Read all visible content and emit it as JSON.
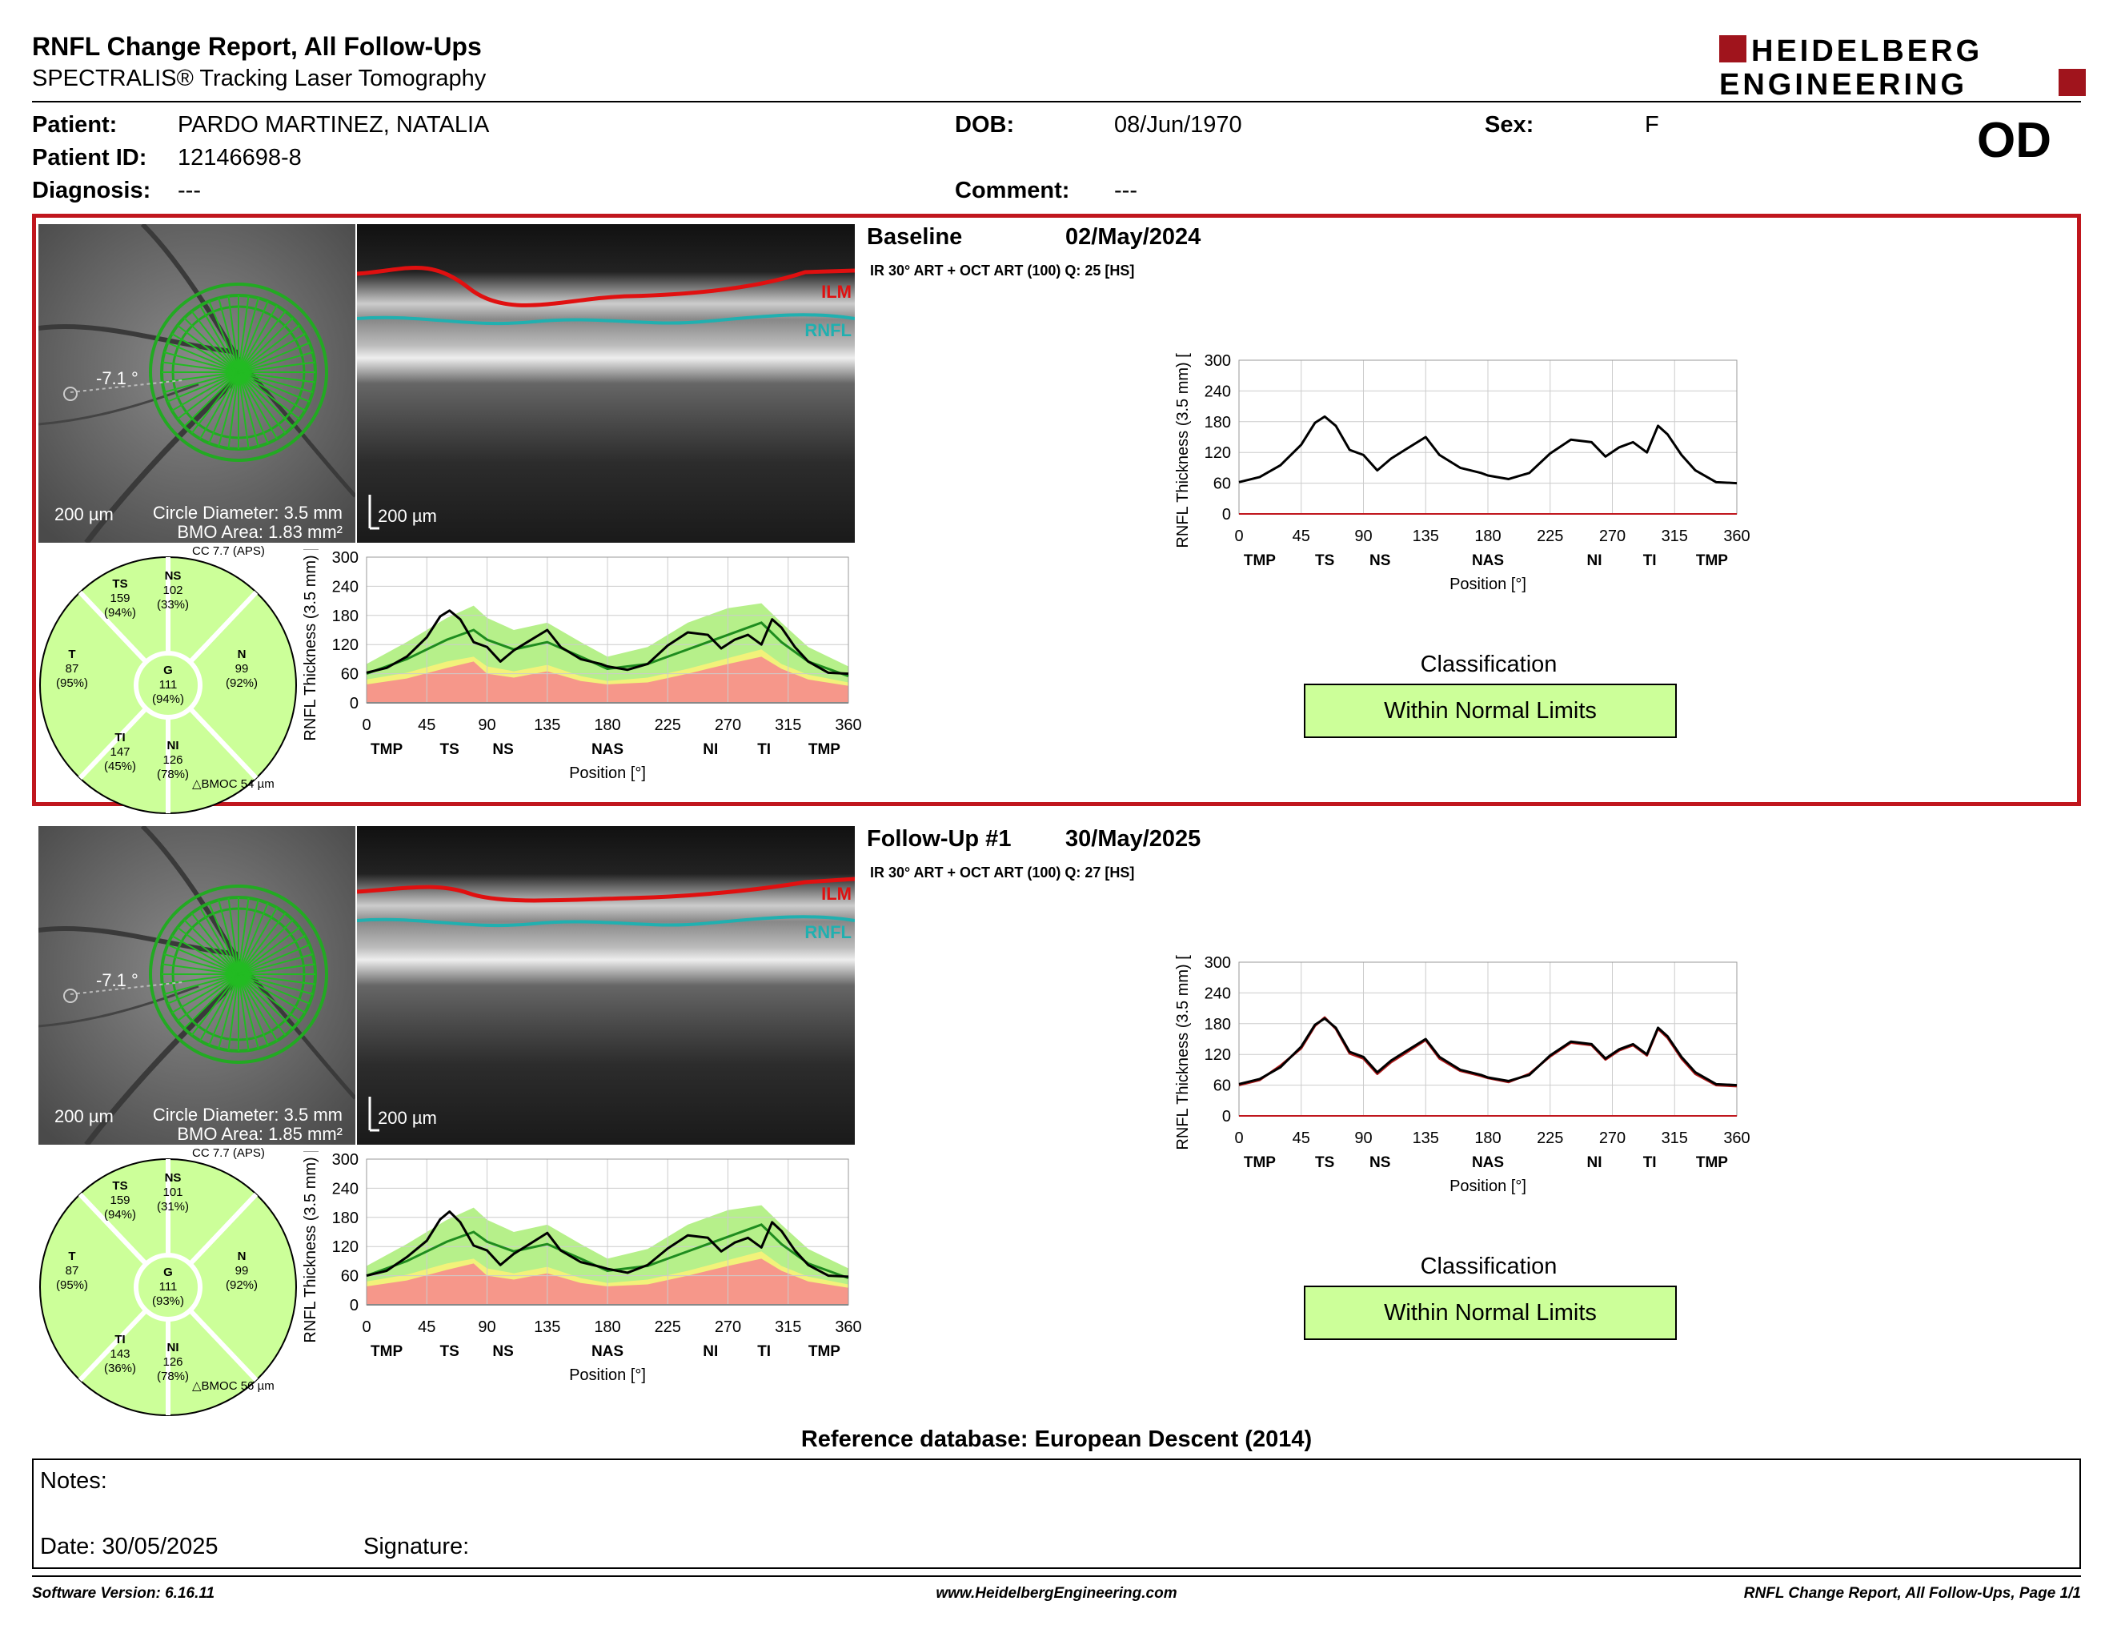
{
  "report": {
    "title": "RNFL Change Report, All Follow-Ups",
    "subtitle": "SPECTRALIS® Tracking Laser Tomography",
    "logo_line1": "HEIDELBERG",
    "logo_line2": "ENGINEERING",
    "eye": "OD"
  },
  "patient": {
    "patient_label": "Patient:",
    "patient_value": "PARDO MARTINEZ, NATALIA",
    "id_label": "Patient ID:",
    "id_value": "12146698-8",
    "diagnosis_label": "Diagnosis:",
    "diagnosis_value": "---",
    "dob_label": "DOB:",
    "dob_value": "08/Jun/1970",
    "comment_label": "Comment:",
    "comment_value": "---",
    "sex_label": "Sex:",
    "sex_value": "F"
  },
  "colors": {
    "accent_red": "#c0161d",
    "within_normal": "#ccff99",
    "band_green": "#b6f08a",
    "band_yellow": "#f2f27a",
    "band_red": "#f6978a",
    "curve_green": "#1e8c1e",
    "ilm_red": "#e01010",
    "rnfl_cyan": "#20b0b0"
  },
  "exams": [
    {
      "label": "Baseline",
      "date": "02/May/2024",
      "acquisition": "IR 30° ART + OCT ART (100) Q: 25 [HS]",
      "scale_fundus": "200 µm",
      "scale_oct": "200 µm",
      "circle_diameter": "Circle Diameter: 3.5 mm",
      "bmo_area": "BMO Area: 1.83 mm²",
      "cc": "CC 7.7 (APS)",
      "angle": "-7.1 °",
      "bmoc": "BMOC 54 µm",
      "ilm_label": "ILM",
      "rnfl_label": "RNFL",
      "sectors": {
        "TS": {
          "name": "TS",
          "value": "159",
          "pct": "(94%)"
        },
        "NS": {
          "name": "NS",
          "value": "102",
          "pct": "(33%)"
        },
        "T": {
          "name": "T",
          "value": "87",
          "pct": "(95%)"
        },
        "G": {
          "name": "G",
          "value": "111",
          "pct": "(94%)"
        },
        "N": {
          "name": "N",
          "value": "99",
          "pct": "(92%)"
        },
        "TI": {
          "name": "TI",
          "value": "147",
          "pct": "(45%)"
        },
        "NI": {
          "name": "NI",
          "value": "126",
          "pct": "(78%)"
        }
      },
      "classification_title": "Classification",
      "classification": "Within Normal Limits"
    },
    {
      "label": "Follow-Up #1",
      "date": "30/May/2025",
      "acquisition": "IR 30° ART + OCT ART (100) Q: 27 [HS]",
      "scale_fundus": "200 µm",
      "scale_oct": "200 µm",
      "circle_diameter": "Circle Diameter: 3.5 mm",
      "bmo_area": "BMO Area: 1.85 mm²",
      "cc": "CC 7.7 (APS)",
      "angle": "-7.1 °",
      "bmoc": "BMOC 56 µm",
      "ilm_label": "ILM",
      "rnfl_label": "RNFL",
      "sectors": {
        "TS": {
          "name": "TS",
          "value": "159",
          "pct": "(94%)"
        },
        "NS": {
          "name": "NS",
          "value": "101",
          "pct": "(31%)"
        },
        "T": {
          "name": "T",
          "value": "87",
          "pct": "(95%)"
        },
        "G": {
          "name": "G",
          "value": "111",
          "pct": "(93%)"
        },
        "N": {
          "name": "N",
          "value": "99",
          "pct": "(92%)"
        },
        "TI": {
          "name": "TI",
          "value": "143",
          "pct": "(36%)"
        },
        "NI": {
          "name": "NI",
          "value": "126",
          "pct": "(78%)"
        }
      },
      "classification_title": "Classification",
      "classification": "Within Normal Limits"
    }
  ],
  "chart_data": [
    {
      "type": "line",
      "title": "",
      "xlabel": "Position [°]",
      "ylabel": "RNFL Thickness (3.5 mm) [µm]",
      "xlim": [
        0,
        360
      ],
      "ylim": [
        0,
        300
      ],
      "xticks": [
        "0",
        "45",
        "90",
        "135",
        "180",
        "225",
        "270",
        "315",
        "360"
      ],
      "yticks": [
        "0",
        "60",
        "120",
        "180",
        "240",
        "300"
      ],
      "sector_ticks": [
        [
          "TMP",
          15
        ],
        [
          "TS",
          62
        ],
        [
          "NS",
          102
        ],
        [
          "NAS",
          180
        ],
        [
          "NI",
          257
        ],
        [
          "TI",
          297
        ],
        [
          "TMP",
          342
        ]
      ],
      "x": [
        0,
        15,
        30,
        45,
        55,
        62,
        70,
        80,
        90,
        100,
        110,
        120,
        135,
        145,
        160,
        175,
        180,
        195,
        210,
        225,
        240,
        255,
        265,
        275,
        285,
        295,
        303,
        310,
        320,
        330,
        345,
        360
      ],
      "series": [
        {
          "name": "",
          "values": [
            62,
            72,
            95,
            135,
            178,
            190,
            172,
            125,
            115,
            85,
            108,
            125,
            150,
            115,
            90,
            80,
            75,
            68,
            80,
            118,
            145,
            140,
            112,
            130,
            140,
            120,
            172,
            155,
            115,
            85,
            62,
            60
          ]
        }
      ],
      "normal_band": {
        "x": [
          0,
          30,
          60,
          80,
          90,
          110,
          135,
          160,
          180,
          210,
          240,
          270,
          295,
          310,
          330,
          360
        ],
        "upper": [
          80,
          125,
          175,
          200,
          175,
          150,
          165,
          125,
          95,
          115,
          165,
          195,
          205,
          165,
          115,
          75
        ],
        "mean": [
          60,
          90,
          130,
          150,
          130,
          110,
          125,
          95,
          70,
          80,
          110,
          140,
          165,
          125,
          85,
          55
        ],
        "yellow": [
          48,
          62,
          85,
          95,
          75,
          65,
          78,
          55,
          45,
          52,
          70,
          92,
          110,
          80,
          58,
          42
        ],
        "red": [
          38,
          50,
          72,
          85,
          60,
          52,
          65,
          45,
          38,
          42,
          60,
          80,
          95,
          70,
          48,
          35
        ]
      }
    },
    {
      "type": "line",
      "title": "",
      "xlabel": "Position [°]",
      "ylabel": "RNFL Thickness (3.5 mm) [µm]",
      "xlim": [
        0,
        360
      ],
      "ylim": [
        0,
        300
      ],
      "xticks": [
        "0",
        "45",
        "90",
        "135",
        "180",
        "225",
        "270",
        "315",
        "360"
      ],
      "yticks": [
        "0",
        "60",
        "120",
        "180",
        "240",
        "300"
      ],
      "sector_ticks": [
        [
          "TMP",
          15
        ],
        [
          "TS",
          62
        ],
        [
          "NS",
          102
        ],
        [
          "NAS",
          180
        ],
        [
          "NI",
          257
        ],
        [
          "TI",
          297
        ],
        [
          "TMP",
          342
        ]
      ],
      "x": [
        0,
        15,
        30,
        45,
        55,
        62,
        70,
        80,
        90,
        100,
        110,
        120,
        135,
        145,
        160,
        175,
        180,
        195,
        210,
        225,
        240,
        255,
        265,
        275,
        285,
        295,
        303,
        310,
        320,
        330,
        345,
        360
      ],
      "series": [
        {
          "name": "",
          "values": [
            62,
            72,
            95,
            135,
            178,
            190,
            172,
            125,
            115,
            85,
            108,
            125,
            150,
            115,
            90,
            80,
            75,
            68,
            80,
            118,
            145,
            140,
            112,
            130,
            140,
            120,
            172,
            155,
            115,
            85,
            62,
            60
          ]
        }
      ]
    },
    {
      "type": "line",
      "title": "",
      "xlabel": "Position [°]",
      "ylabel": "RNFL Thickness (3.5 mm) [µm]",
      "xlim": [
        0,
        360
      ],
      "ylim": [
        0,
        300
      ],
      "xticks": [
        "0",
        "45",
        "90",
        "135",
        "180",
        "225",
        "270",
        "315",
        "360"
      ],
      "yticks": [
        "0",
        "60",
        "120",
        "180",
        "240",
        "300"
      ],
      "sector_ticks": [
        [
          "TMP",
          15
        ],
        [
          "TS",
          62
        ],
        [
          "NS",
          102
        ],
        [
          "NAS",
          180
        ],
        [
          "NI",
          257
        ],
        [
          "TI",
          297
        ],
        [
          "TMP",
          342
        ]
      ],
      "x": [
        0,
        15,
        30,
        45,
        55,
        62,
        70,
        80,
        90,
        100,
        110,
        120,
        135,
        145,
        160,
        175,
        180,
        195,
        210,
        225,
        240,
        255,
        265,
        275,
        285,
        295,
        303,
        310,
        320,
        330,
        345,
        360
      ],
      "series": [
        {
          "name": "",
          "values": [
            60,
            70,
            98,
            132,
            176,
            192,
            170,
            122,
            112,
            82,
            105,
            122,
            148,
            112,
            88,
            78,
            74,
            66,
            82,
            116,
            143,
            138,
            110,
            128,
            138,
            118,
            170,
            152,
            112,
            82,
            60,
            58
          ]
        }
      ],
      "normal_band": {
        "x": [
          0,
          30,
          60,
          80,
          90,
          110,
          135,
          160,
          180,
          210,
          240,
          270,
          295,
          310,
          330,
          360
        ],
        "upper": [
          80,
          125,
          175,
          200,
          175,
          150,
          165,
          125,
          95,
          115,
          165,
          195,
          205,
          165,
          115,
          75
        ],
        "mean": [
          60,
          90,
          130,
          150,
          130,
          110,
          125,
          95,
          70,
          80,
          110,
          140,
          165,
          125,
          85,
          55
        ],
        "yellow": [
          48,
          62,
          85,
          95,
          75,
          65,
          78,
          55,
          45,
          52,
          70,
          92,
          110,
          80,
          58,
          42
        ],
        "red": [
          38,
          50,
          72,
          85,
          60,
          52,
          65,
          45,
          38,
          42,
          60,
          80,
          95,
          70,
          48,
          35
        ]
      }
    },
    {
      "type": "line",
      "title": "",
      "xlabel": "Position [°]",
      "ylabel": "RNFL Thickness (3.5 mm) [µm]",
      "xlim": [
        0,
        360
      ],
      "ylim": [
        0,
        300
      ],
      "xticks": [
        "0",
        "45",
        "90",
        "135",
        "180",
        "225",
        "270",
        "315",
        "360"
      ],
      "yticks": [
        "0",
        "60",
        "120",
        "180",
        "240",
        "300"
      ],
      "sector_ticks": [
        [
          "TMP",
          15
        ],
        [
          "TS",
          62
        ],
        [
          "NS",
          102
        ],
        [
          "NAS",
          180
        ],
        [
          "NI",
          257
        ],
        [
          "TI",
          297
        ],
        [
          "TMP",
          342
        ]
      ],
      "x": [
        0,
        15,
        30,
        45,
        55,
        62,
        70,
        80,
        90,
        100,
        110,
        120,
        135,
        145,
        160,
        175,
        180,
        195,
        210,
        225,
        240,
        255,
        265,
        275,
        285,
        295,
        303,
        310,
        320,
        330,
        345,
        360
      ],
      "series": [
        {
          "name": "",
          "values": [
            62,
            72,
            95,
            135,
            178,
            190,
            172,
            125,
            115,
            85,
            108,
            125,
            150,
            115,
            90,
            80,
            75,
            68,
            80,
            118,
            145,
            140,
            112,
            130,
            140,
            120,
            172,
            155,
            115,
            85,
            62,
            60
          ]
        },
        {
          "name": "",
          "values": [
            60,
            70,
            98,
            132,
            176,
            192,
            170,
            122,
            112,
            82,
            105,
            122,
            148,
            112,
            88,
            78,
            74,
            66,
            82,
            116,
            143,
            138,
            110,
            128,
            138,
            118,
            170,
            152,
            112,
            82,
            60,
            58
          ]
        }
      ]
    }
  ],
  "reference_db": "Reference database: European Descent (2014)",
  "notes": {
    "notes_label": "Notes:",
    "date_label": "Date: 30/05/2025",
    "signature_label": "Signature:"
  },
  "footer": {
    "software": "Software Version: 6.16.11",
    "website": "www.HeidelbergEngineering.com",
    "page": "RNFL Change Report, All Follow-Ups, Page 1/1"
  }
}
